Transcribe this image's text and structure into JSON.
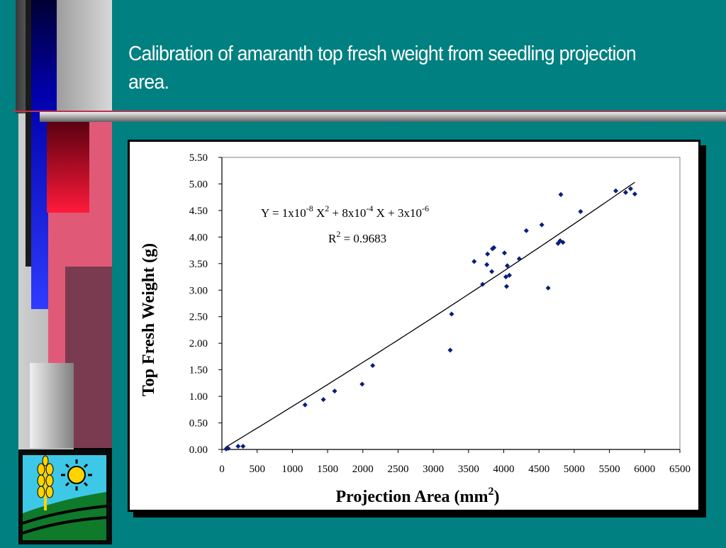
{
  "slide": {
    "title": "Calibration of amaranth top fresh weight from seedling projection area."
  },
  "colors": {
    "background": "#008080",
    "marker": "#0a1f7a",
    "frame_border": "#000000"
  },
  "logo": {
    "icon": "wheat-sun-field-logo"
  },
  "chart_data": {
    "type": "scatter",
    "title": "",
    "xlabel": "Projection Area (mm",
    "xlabel_sup": "2",
    "xlabel_end": ")",
    "ylabel": "Top Fresh Weight (g)",
    "xlim": [
      0,
      6500
    ],
    "ylim": [
      0,
      5.5
    ],
    "x_ticks": [
      0,
      500,
      1000,
      1500,
      2000,
      2500,
      3000,
      3500,
      4000,
      4500,
      5000,
      5500,
      6000,
      6500
    ],
    "y_ticks": [
      "0.00",
      "0.50",
      "1.00",
      "1.50",
      "2.00",
      "2.50",
      "3.00",
      "3.50",
      "4.00",
      "4.50",
      "5.00",
      "5.50"
    ],
    "grid": false,
    "equation": {
      "y": "Y = 1x10",
      "e1": "-8",
      "x2": " X",
      "e2": "2",
      "t2": " + 8x10",
      "e3": "-4",
      "t3": " X + 3x10",
      "e4": "-6"
    },
    "r2": {
      "label": "R",
      "sup": "2",
      "value": " = 0.9683"
    },
    "points": [
      [
        60,
        0.01
      ],
      [
        90,
        0.02
      ],
      [
        230,
        0.06
      ],
      [
        300,
        0.06
      ],
      [
        1180,
        0.84
      ],
      [
        1440,
        0.94
      ],
      [
        1600,
        1.1
      ],
      [
        1990,
        1.23
      ],
      [
        2140,
        1.58
      ],
      [
        3240,
        1.87
      ],
      [
        3260,
        2.55
      ],
      [
        3580,
        3.54
      ],
      [
        3700,
        3.11
      ],
      [
        3760,
        3.48
      ],
      [
        3770,
        3.68
      ],
      [
        3830,
        3.35
      ],
      [
        3840,
        3.78
      ],
      [
        3860,
        3.8
      ],
      [
        4010,
        3.7
      ],
      [
        4030,
        3.25
      ],
      [
        4040,
        3.07
      ],
      [
        4050,
        3.46
      ],
      [
        4080,
        3.28
      ],
      [
        4220,
        3.59
      ],
      [
        4320,
        4.12
      ],
      [
        4540,
        4.23
      ],
      [
        4630,
        3.04
      ],
      [
        4770,
        3.88
      ],
      [
        4800,
        3.93
      ],
      [
        4810,
        4.8
      ],
      [
        4840,
        3.9
      ],
      [
        5090,
        4.48
      ],
      [
        5590,
        4.87
      ],
      [
        5730,
        4.84
      ],
      [
        5800,
        4.91
      ],
      [
        5860,
        4.81
      ]
    ],
    "trendline": {
      "x_range": [
        50,
        5860
      ],
      "coefficients": {
        "a": 1e-08,
        "b": 0.0008,
        "c": 3e-06
      }
    }
  }
}
